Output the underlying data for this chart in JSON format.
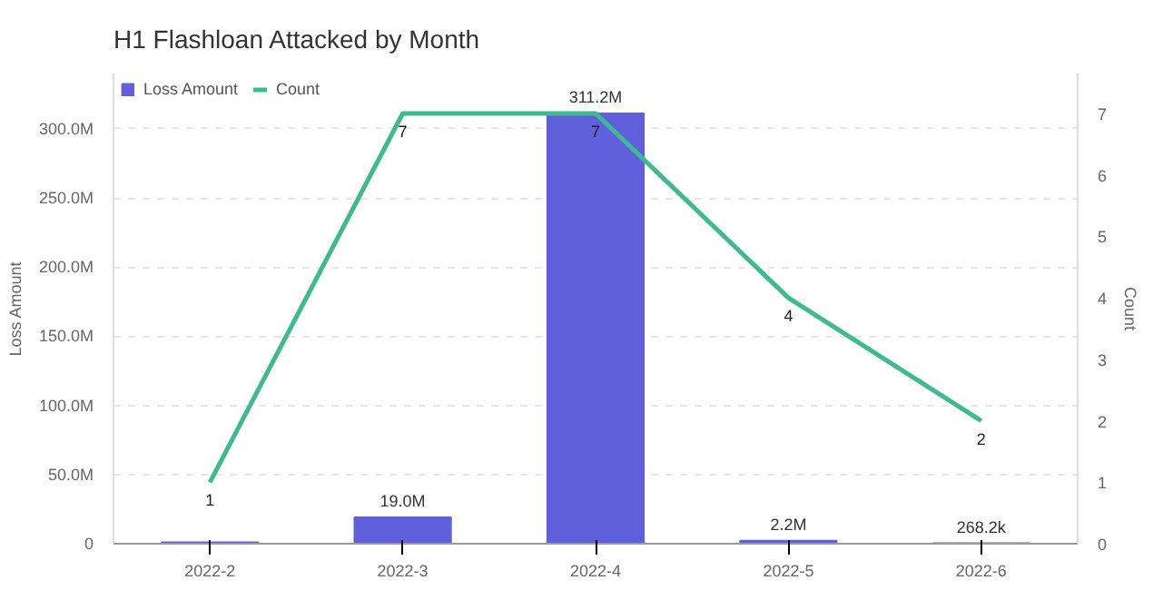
{
  "chart_data": {
    "type": "bar",
    "title": "H1 Flashloan Attacked by Month",
    "categories": [
      "2022-2",
      "2022-3",
      "2022-4",
      "2022-5",
      "2022-6"
    ],
    "series": [
      {
        "name": "Loss Amount",
        "color": "#6160dc",
        "values": [
          1000000,
          19000000,
          311200000,
          2200000,
          268200
        ],
        "value_labels": [
          null,
          "19.0M",
          "311.2M",
          "2.2M",
          "268.2k"
        ]
      },
      {
        "name": "Count",
        "type": "line",
        "axis": "y2",
        "color": "#3dbb8e",
        "values": [
          1,
          7,
          7,
          4,
          2
        ],
        "value_labels": [
          "1",
          "7",
          "7",
          "4",
          "2"
        ]
      }
    ],
    "ylabel": "Loss Amount",
    "y2label": "Count",
    "ylim": [
      0,
      340000000
    ],
    "yticks": [
      0,
      {
        "value": 50000000,
        "label": "50.0M"
      },
      {
        "value": 100000000,
        "label": "100.0M"
      },
      {
        "value": 150000000,
        "label": "150.0M"
      },
      {
        "value": 200000000,
        "label": "200.0M"
      },
      {
        "value": 250000000,
        "label": "250.0M"
      },
      {
        "value": 300000000,
        "label": "300.0M"
      }
    ],
    "y2lim": [
      0,
      7.65
    ],
    "y2ticks": [
      0,
      1,
      2,
      3,
      4,
      5,
      6,
      7
    ],
    "grid": "y",
    "legend": "top left"
  }
}
